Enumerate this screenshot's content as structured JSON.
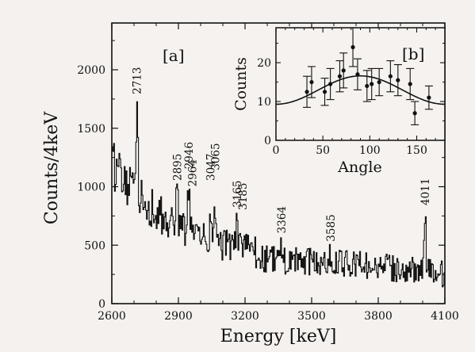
{
  "chart_data": [
    {
      "type": "line",
      "panel_label": "[a]",
      "xlabel": "Energy [keV]",
      "ylabel": "Counts/4keV",
      "xlim": [
        2600,
        4100
      ],
      "ylim": [
        0,
        2400
      ],
      "x_ticks": [
        2600,
        2900,
        3200,
        3500,
        3800,
        4100
      ],
      "y_ticks": [
        0,
        500,
        1000,
        1500,
        2000
      ],
      "grid": false,
      "style": "histogram",
      "peak_labels": [
        {
          "text": "2713",
          "x": 2713,
          "y": 1750
        },
        {
          "text": "2895",
          "x": 2895,
          "y": 1010
        },
        {
          "text": "2946",
          "x": 2946,
          "y": 1110
        },
        {
          "text": "2964",
          "x": 2962,
          "y": 960
        },
        {
          "text": "3047",
          "x": 3044,
          "y": 1010
        },
        {
          "text": "3065",
          "x": 3066,
          "y": 1100
        },
        {
          "text": "3165",
          "x": 3165,
          "y": 780
        },
        {
          "text": "3185",
          "x": 3189,
          "y": 760
        },
        {
          "text": "3364",
          "x": 3364,
          "y": 560
        },
        {
          "text": "3585",
          "x": 3585,
          "y": 490
        },
        {
          "text": "4011",
          "x": 4011,
          "y": 800
        }
      ],
      "peaks": [
        {
          "x": 2713,
          "height": 1000,
          "width": 3.5
        },
        {
          "x": 2895,
          "height": 270,
          "width": 5
        },
        {
          "x": 2946,
          "height": 300,
          "width": 5
        },
        {
          "x": 2964,
          "height": 160,
          "width": 4
        },
        {
          "x": 3047,
          "height": 220,
          "width": 4
        },
        {
          "x": 3065,
          "height": 300,
          "width": 4
        },
        {
          "x": 3165,
          "height": 180,
          "width": 6
        },
        {
          "x": 3185,
          "height": 90,
          "width": 5
        },
        {
          "x": 3364,
          "height": 120,
          "width": 5
        },
        {
          "x": 3585,
          "height": 110,
          "width": 5
        },
        {
          "x": 4011,
          "height": 590,
          "width": 4
        }
      ],
      "bin_width": 4
    },
    {
      "type": "scatter",
      "panel_label": "[b]",
      "xlabel": "Angle",
      "ylabel": "Counts",
      "xlim": [
        0,
        180
      ],
      "ylim": [
        0,
        29
      ],
      "x_ticks": [
        0,
        50,
        100,
        150
      ],
      "y_ticks": [
        0,
        10,
        20
      ],
      "points": [
        {
          "x": 33,
          "y": 12.5,
          "err": 4.0
        },
        {
          "x": 38,
          "y": 15.0,
          "err": 4.0
        },
        {
          "x": 52,
          "y": 12.5,
          "err": 3.5
        },
        {
          "x": 58,
          "y": 14.5,
          "err": 4.0
        },
        {
          "x": 68,
          "y": 16.5,
          "err": 4.0
        },
        {
          "x": 72,
          "y": 18.0,
          "err": 4.5
        },
        {
          "x": 82,
          "y": 24.0,
          "err": 5.0
        },
        {
          "x": 87,
          "y": 17.0,
          "err": 4.0
        },
        {
          "x": 97,
          "y": 14.0,
          "err": 4.0
        },
        {
          "x": 102,
          "y": 14.5,
          "err": 4.0
        },
        {
          "x": 110,
          "y": 15.0,
          "err": 3.5
        },
        {
          "x": 122,
          "y": 16.5,
          "err": 4.0
        },
        {
          "x": 130,
          "y": 15.5,
          "err": 4.0
        },
        {
          "x": 143,
          "y": 14.5,
          "err": 4.0
        },
        {
          "x": 148,
          "y": 7.0,
          "err": 3.0
        },
        {
          "x": 163,
          "y": 11.0,
          "err": 3.0
        }
      ],
      "fit_curve": {
        "a0": 13.0,
        "a2": 7.3
      }
    }
  ]
}
